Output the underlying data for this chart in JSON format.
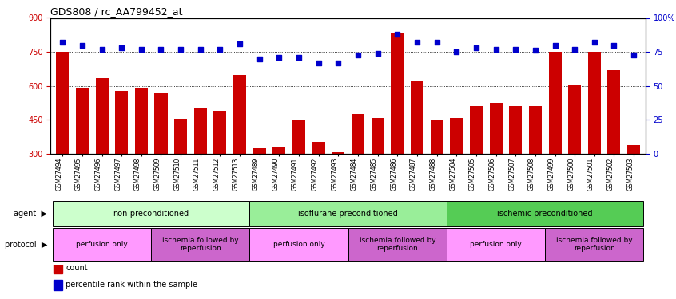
{
  "title": "GDS808 / rc_AA799452_at",
  "samples": [
    "GSM27494",
    "GSM27495",
    "GSM27496",
    "GSM27497",
    "GSM27498",
    "GSM27509",
    "GSM27510",
    "GSM27511",
    "GSM27512",
    "GSM27513",
    "GSM27489",
    "GSM27490",
    "GSM27491",
    "GSM27492",
    "GSM27493",
    "GSM27484",
    "GSM27485",
    "GSM27486",
    "GSM27487",
    "GSM27488",
    "GSM27504",
    "GSM27505",
    "GSM27506",
    "GSM27507",
    "GSM27508",
    "GSM27499",
    "GSM27500",
    "GSM27501",
    "GSM27502",
    "GSM27503"
  ],
  "bar_values": [
    750,
    592,
    635,
    578,
    594,
    568,
    456,
    502,
    490,
    647,
    327,
    332,
    450,
    352,
    308,
    478,
    460,
    830,
    622,
    452,
    459,
    510,
    527,
    510,
    510,
    750,
    607,
    750,
    670,
    340
  ],
  "percentile_values": [
    82,
    80,
    77,
    78,
    77,
    77,
    77,
    77,
    77,
    81,
    70,
    71,
    71,
    67,
    67,
    73,
    74,
    88,
    82,
    82,
    75,
    78,
    77,
    77,
    76,
    80,
    77,
    82,
    80,
    73
  ],
  "ylim_left": [
    300,
    900
  ],
  "ylim_right": [
    0,
    100
  ],
  "yticks_left": [
    300,
    450,
    600,
    750,
    900
  ],
  "yticks_right": [
    0,
    25,
    50,
    75,
    100
  ],
  "ytick_labels_right": [
    "0",
    "25",
    "50",
    "75",
    "100%"
  ],
  "bar_color": "#cc0000",
  "dot_color": "#0000cc",
  "agent_groups": [
    {
      "label": "non-preconditioned",
      "start": 0,
      "end": 9,
      "color": "#ccffcc"
    },
    {
      "label": "isoflurane preconditioned",
      "start": 10,
      "end": 19,
      "color": "#99ee99"
    },
    {
      "label": "ischemic preconditioned",
      "start": 20,
      "end": 29,
      "color": "#55cc55"
    }
  ],
  "protocol_groups": [
    {
      "label": "perfusion only",
      "start": 0,
      "end": 4,
      "color": "#ff99ff"
    },
    {
      "label": "ischemia followed by\nreperfusion",
      "start": 5,
      "end": 9,
      "color": "#cc66cc"
    },
    {
      "label": "perfusion only",
      "start": 10,
      "end": 14,
      "color": "#ff99ff"
    },
    {
      "label": "ischemia followed by\nreperfusion",
      "start": 15,
      "end": 19,
      "color": "#cc66cc"
    },
    {
      "label": "perfusion only",
      "start": 20,
      "end": 24,
      "color": "#ff99ff"
    },
    {
      "label": "ischemia followed by\nreperfusion",
      "start": 25,
      "end": 29,
      "color": "#cc66cc"
    }
  ],
  "legend_items": [
    {
      "label": "count",
      "color": "#cc0000"
    },
    {
      "label": "percentile rank within the sample",
      "color": "#0000cc"
    }
  ]
}
